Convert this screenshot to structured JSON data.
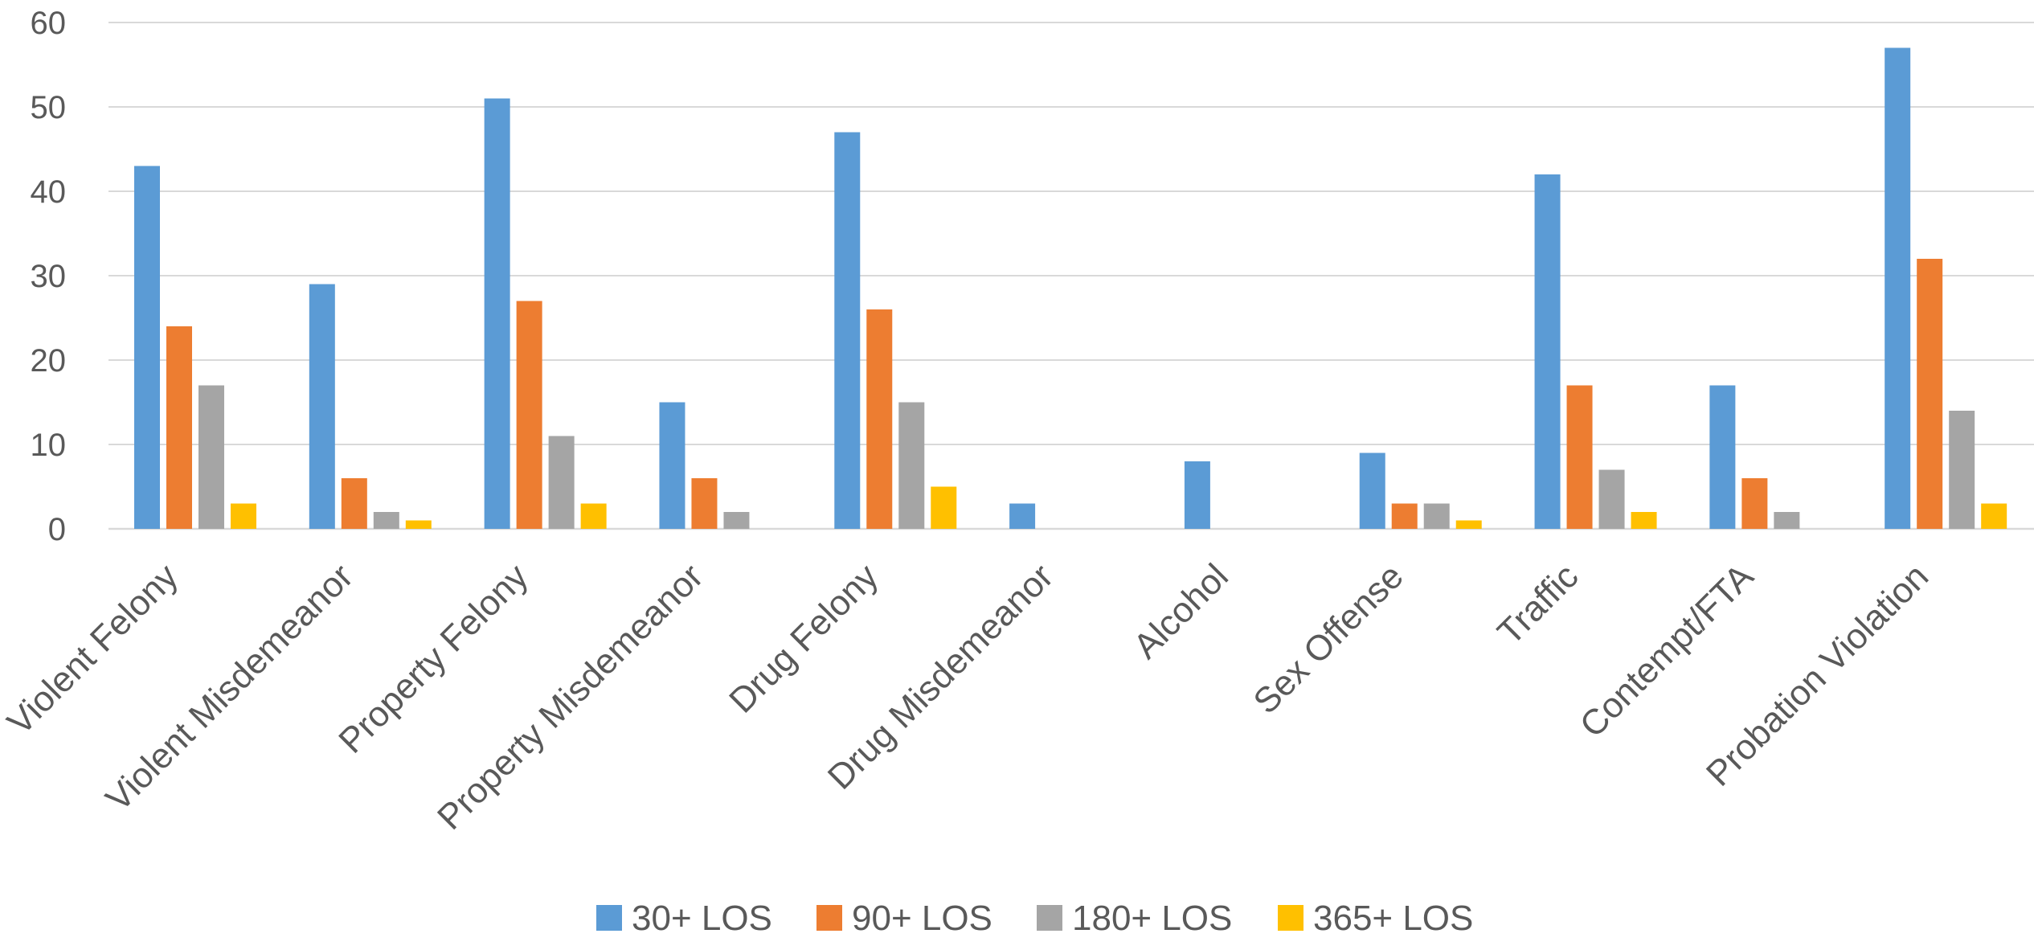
{
  "chart_data": {
    "type": "bar",
    "title": "",
    "xlabel": "",
    "ylabel": "",
    "ylim": [
      0,
      60
    ],
    "yticks": [
      0,
      10,
      20,
      30,
      40,
      50,
      60
    ],
    "grid": true,
    "legend_position": "bottom",
    "categories": [
      "Violent Felony",
      "Violent Misdemeanor",
      "Property Felony",
      "Property Misdemeanor",
      "Drug Felony",
      "Drug Misdemeanor",
      "Alcohol",
      "Sex Offense",
      "Traffic",
      "Contempt/FTA",
      "Probation Violation"
    ],
    "series": [
      {
        "name": "30+ LOS",
        "color": "#5B9BD5",
        "values": [
          43,
          29,
          51,
          15,
          47,
          3,
          8,
          9,
          42,
          17,
          57
        ]
      },
      {
        "name": "90+ LOS",
        "color": "#ED7D31",
        "values": [
          24,
          6,
          27,
          6,
          26,
          0,
          0,
          3,
          17,
          6,
          32
        ]
      },
      {
        "name": "180+ LOS",
        "color": "#A5A5A5",
        "values": [
          17,
          2,
          11,
          2,
          15,
          0,
          0,
          3,
          7,
          2,
          14
        ]
      },
      {
        "name": "365+ LOS",
        "color": "#FFC000",
        "values": [
          3,
          1,
          3,
          0,
          5,
          0,
          0,
          1,
          2,
          0,
          3
        ]
      }
    ]
  }
}
